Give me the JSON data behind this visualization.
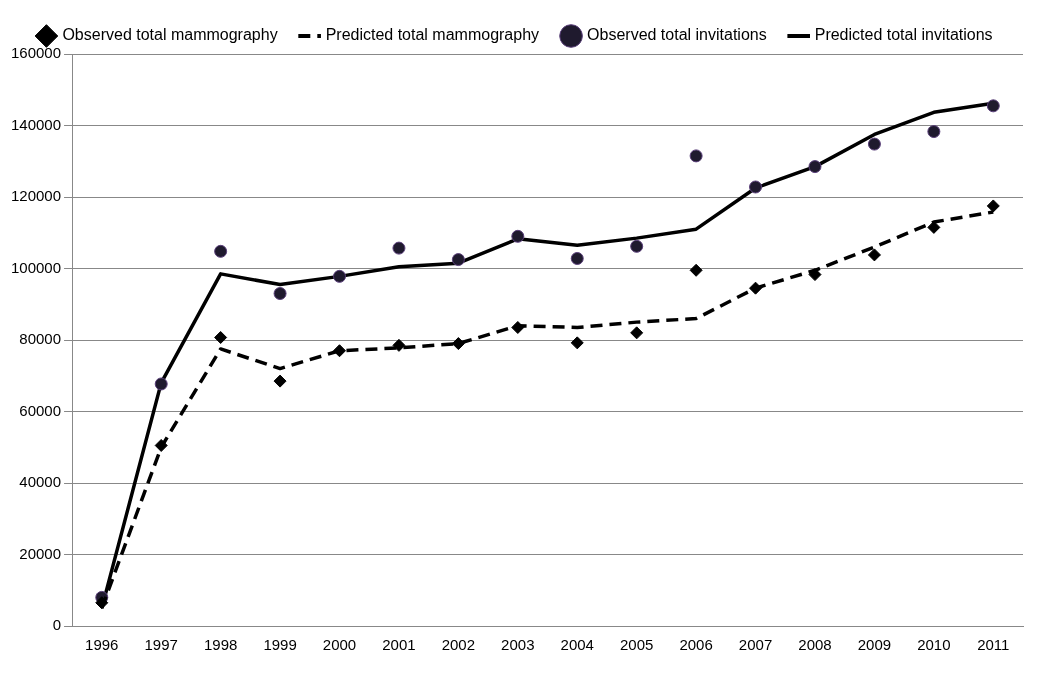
{
  "chart_data": {
    "type": "line",
    "categories": [
      "1996",
      "1997",
      "1998",
      "1999",
      "2000",
      "2001",
      "2002",
      "2003",
      "2004",
      "2005",
      "2006",
      "2007",
      "2008",
      "2009",
      "2010",
      "2011"
    ],
    "series": [
      {
        "name": "Predicted total invitations",
        "type": "line",
        "color": "#000000",
        "marker": "none",
        "line_style": "solid",
        "values": [
          5000,
          68000,
          98500,
          95500,
          97800,
          100500,
          101500,
          108300,
          106500,
          108500,
          111000,
          122500,
          128500,
          137500,
          143700,
          146200
        ]
      },
      {
        "name": "Observed total invitations",
        "type": "scatter",
        "color": "#1f1a2e",
        "marker": "circle",
        "values": [
          8000,
          67700,
          104800,
          93000,
          97800,
          105700,
          102500,
          109000,
          102800,
          106200,
          131500,
          122800,
          128500,
          134800,
          138300,
          145500
        ]
      },
      {
        "name": "Predicted total mammography",
        "type": "line",
        "color": "#000000",
        "marker": "none",
        "line_style": "dashed",
        "values": [
          5000,
          50000,
          77500,
          72000,
          77000,
          77800,
          79000,
          84000,
          83500,
          85000,
          86000,
          94500,
          99500,
          106000,
          113000,
          115800
        ]
      },
      {
        "name": "Observed total mammography",
        "type": "scatter",
        "color": "#000000",
        "marker": "diamond",
        "values": [
          6500,
          50500,
          80700,
          68500,
          77000,
          78500,
          79000,
          83500,
          79200,
          82000,
          99500,
          94500,
          98300,
          103800,
          111500,
          117500
        ]
      }
    ],
    "ylim": [
      0,
      160000
    ],
    "yticks": [
      0,
      20000,
      40000,
      60000,
      80000,
      100000,
      120000,
      140000,
      160000
    ],
    "grid": "y",
    "legend": "top"
  }
}
